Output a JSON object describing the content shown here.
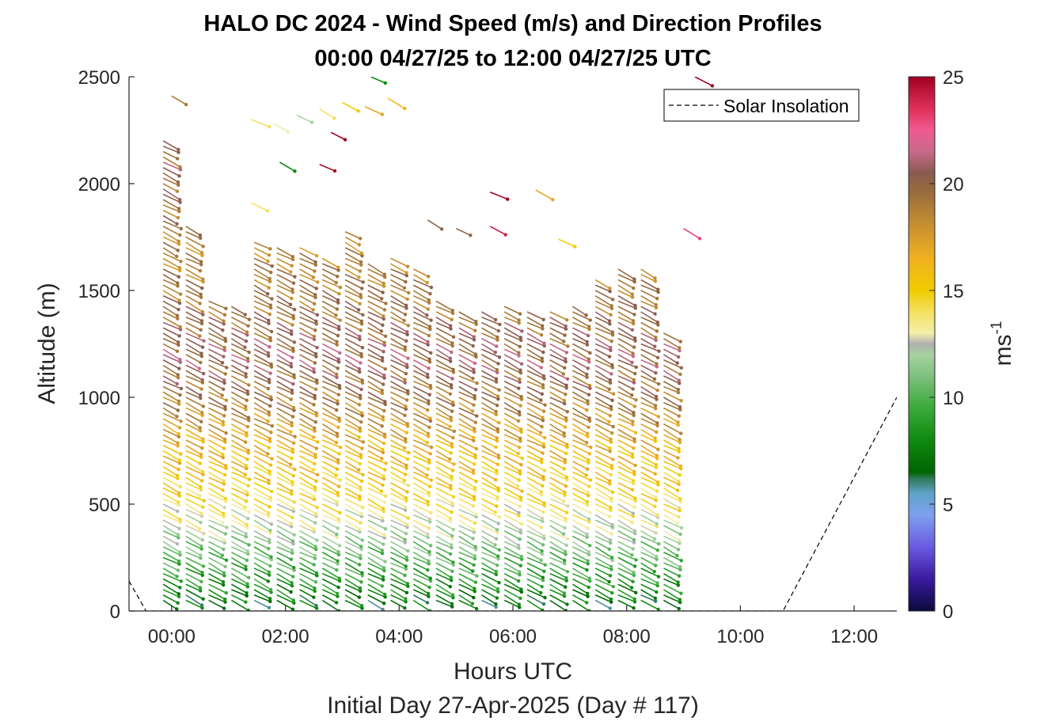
{
  "chart_data": {
    "type": "wind-barb-profile",
    "title": "HALO DC 2024 - Wind Speed (m/s) and Direction Profiles",
    "subtitle": "00:00 04/27/25 to 12:00 04/27/25  UTC",
    "xlabel": "Hours UTC",
    "xlabel2": "Initial Day 27-Apr-2025 (Day # 117)",
    "ylabel": "Altitude (m)",
    "xlim": [
      -0.75,
      12.75
    ],
    "ylim": [
      0,
      2500
    ],
    "xticks": [
      0,
      2,
      4,
      6,
      8,
      10,
      12
    ],
    "xtick_labels": [
      "00:00",
      "02:00",
      "04:00",
      "06:00",
      "08:00",
      "10:00",
      "12:00"
    ],
    "yticks": [
      0,
      500,
      1000,
      1500,
      2000,
      2500
    ],
    "ytick_labels": [
      "0",
      "500",
      "1000",
      "1500",
      "2000",
      "2500"
    ],
    "colorbar": {
      "label": "ms",
      "label_exponent": "-1",
      "range": [
        0,
        25
      ],
      "ticks": [
        0,
        5,
        10,
        15,
        20,
        25
      ],
      "tick_labels": [
        "0",
        "5",
        "10",
        "15",
        "20",
        "25"
      ],
      "colors": [
        {
          "v": 0,
          "c": "#0a0a3c"
        },
        {
          "v": 1.5,
          "c": "#3a1aa0"
        },
        {
          "v": 3,
          "c": "#6a5ae0"
        },
        {
          "v": 4.5,
          "c": "#7fa0ef"
        },
        {
          "v": 5.5,
          "c": "#5fa2c8"
        },
        {
          "v": 6.2,
          "c": "#2f7a5a"
        },
        {
          "v": 6.5,
          "c": "#006400"
        },
        {
          "v": 8,
          "c": "#0f8a0f"
        },
        {
          "v": 9.5,
          "c": "#3aaa3a"
        },
        {
          "v": 11,
          "c": "#7fc07f"
        },
        {
          "v": 12,
          "c": "#a6d2a0"
        },
        {
          "v": 12.5,
          "c": "#b0b0b0"
        },
        {
          "v": 13,
          "c": "#f4eeaa"
        },
        {
          "v": 14,
          "c": "#f4e060"
        },
        {
          "v": 15,
          "c": "#f0cc00"
        },
        {
          "v": 16.5,
          "c": "#f0b020"
        },
        {
          "v": 18,
          "c": "#c89030"
        },
        {
          "v": 19.5,
          "c": "#9a6e3c"
        },
        {
          "v": 20.5,
          "c": "#8a5a50"
        },
        {
          "v": 21.5,
          "c": "#c86a8a"
        },
        {
          "v": 22.5,
          "c": "#f05a90"
        },
        {
          "v": 23.5,
          "c": "#e0305a"
        },
        {
          "v": 25,
          "c": "#a00020"
        }
      ]
    },
    "legend": {
      "entries": [
        "Solar Insolation"
      ],
      "location": "top-right",
      "line_style": "dashed"
    },
    "solar_insolation_line": {
      "x": [
        -0.75,
        -0.45,
        10.75,
        12.75
      ],
      "y": [
        140,
        0,
        0,
        1000
      ],
      "color": "#000000"
    },
    "profile_times_h": [
      0.0,
      0.4,
      0.8,
      1.2,
      1.6,
      2.0,
      2.4,
      2.8,
      3.2,
      3.6,
      4.0,
      4.4,
      4.8,
      5.2,
      5.6,
      6.0,
      6.4,
      6.8,
      7.2,
      7.6,
      8.0,
      8.4,
      8.8
    ],
    "profile_tops_m": [
      2200,
      1800,
      1470,
      1430,
      1730,
      1710,
      1700,
      1650,
      1780,
      1630,
      1660,
      1600,
      1450,
      1420,
      1410,
      1430,
      1400,
      1410,
      1430,
      1550,
      1600,
      1620,
      1300
    ],
    "wind_speed_profile": {
      "altitude_m": [
        50,
        150,
        300,
        450,
        600,
        800,
        1000,
        1200,
        1400,
        1700,
        2100
      ],
      "speed_ms": [
        7,
        8.5,
        10.5,
        13,
        15,
        16.5,
        19,
        20.5,
        19.5,
        18.5,
        20
      ]
    },
    "barb_spacing_m": 25,
    "upper_level_barbs": [
      {
        "t": 1.4,
        "z": 2300,
        "spd": 14
      },
      {
        "t": 1.8,
        "z": 2280,
        "spd": 13
      },
      {
        "t": 2.2,
        "z": 2320,
        "spd": 12
      },
      {
        "t": 2.6,
        "z": 2350,
        "spd": 14
      },
      {
        "t": 3.0,
        "z": 2380,
        "spd": 15
      },
      {
        "t": 3.4,
        "z": 2360,
        "spd": 17
      },
      {
        "t": 3.8,
        "z": 2400,
        "spd": 16
      },
      {
        "t": 2.8,
        "z": 2240,
        "spd": 25
      },
      {
        "t": 2.6,
        "z": 2090,
        "spd": 25
      },
      {
        "t": 1.9,
        "z": 2100,
        "spd": 8
      },
      {
        "t": 1.4,
        "z": 1910,
        "spd": 14
      },
      {
        "t": 5.6,
        "z": 1960,
        "spd": 25
      },
      {
        "t": 6.4,
        "z": 1970,
        "spd": 17
      },
      {
        "t": 5.0,
        "z": 1790,
        "spd": 20
      },
      {
        "t": 4.5,
        "z": 1830,
        "spd": 20
      },
      {
        "t": 5.6,
        "z": 1800,
        "spd": 24
      },
      {
        "t": 6.8,
        "z": 1740,
        "spd": 15
      },
      {
        "t": 9.0,
        "z": 1790,
        "spd": 23
      },
      {
        "t": 9.2,
        "z": 2500,
        "spd": 25
      },
      {
        "t": 3.5,
        "z": 2500,
        "spd": 8
      },
      {
        "t": 0.0,
        "z": 2410,
        "spd": 19
      }
    ],
    "wind_direction_note": "northwesterly"
  }
}
